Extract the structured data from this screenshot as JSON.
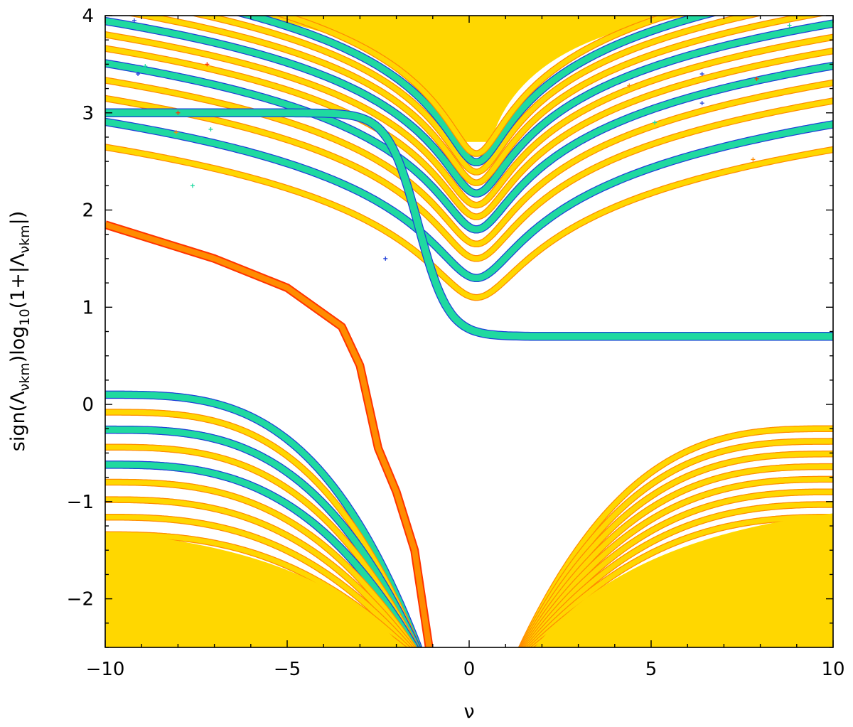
{
  "chart_data": {
    "type": "line",
    "title": "",
    "xlabel": "ν",
    "ylabel_parts": {
      "prefix": "sign(Λ",
      "sub1": "νkm",
      "middle": ")log",
      "sub2": "10",
      "suffix": "(1+|Λ",
      "sub3": "νkm",
      "end": "|)"
    },
    "xlim": [
      -10,
      10
    ],
    "ylim": [
      -2.5,
      4
    ],
    "xticks": [
      -10,
      -5,
      0,
      5,
      10
    ],
    "xtick_labels": [
      "−10",
      "−5",
      "0",
      "5",
      "10"
    ],
    "yticks": [
      -2,
      -1,
      0,
      1,
      2,
      3,
      4
    ],
    "ytick_labels": [
      "−2",
      "−1",
      "0",
      "1",
      "2",
      "3",
      "4"
    ],
    "colors": {
      "yellow": "#ffd700",
      "orange": "#ff8c00",
      "red": "#ff3300",
      "green": "#1fd9a0",
      "blue": "#1f3fd9"
    },
    "upper_families": [
      {
        "name": "",
        "points": [
          [
            -10,
            3.0
          ],
          [
            -6,
            2.55
          ],
          [
            -3,
            2.05
          ],
          [
            -1,
            1.2
          ],
          [
            0,
            0.85
          ],
          [
            2,
            0.74
          ],
          [
            5,
            0.72
          ],
          [
            10,
            0.7
          ]
        ],
        "color": "green"
      },
      {
        "name": "",
        "points": [
          [
            -10,
            1.85
          ],
          [
            -7,
            1.5
          ],
          [
            -5,
            1.2
          ],
          [
            -3.5,
            0.8
          ],
          [
            -3,
            0.4
          ],
          [
            -2.5,
            -0.45
          ],
          [
            -2,
            -0.9
          ],
          [
            -1.5,
            -1.5
          ],
          [
            -1.1,
            -2.5
          ]
        ],
        "color": "orange"
      }
    ],
    "lower_region": {
      "x_gap": [
        -1.2,
        1.2
      ],
      "y_floor": -2.5
    }
  }
}
